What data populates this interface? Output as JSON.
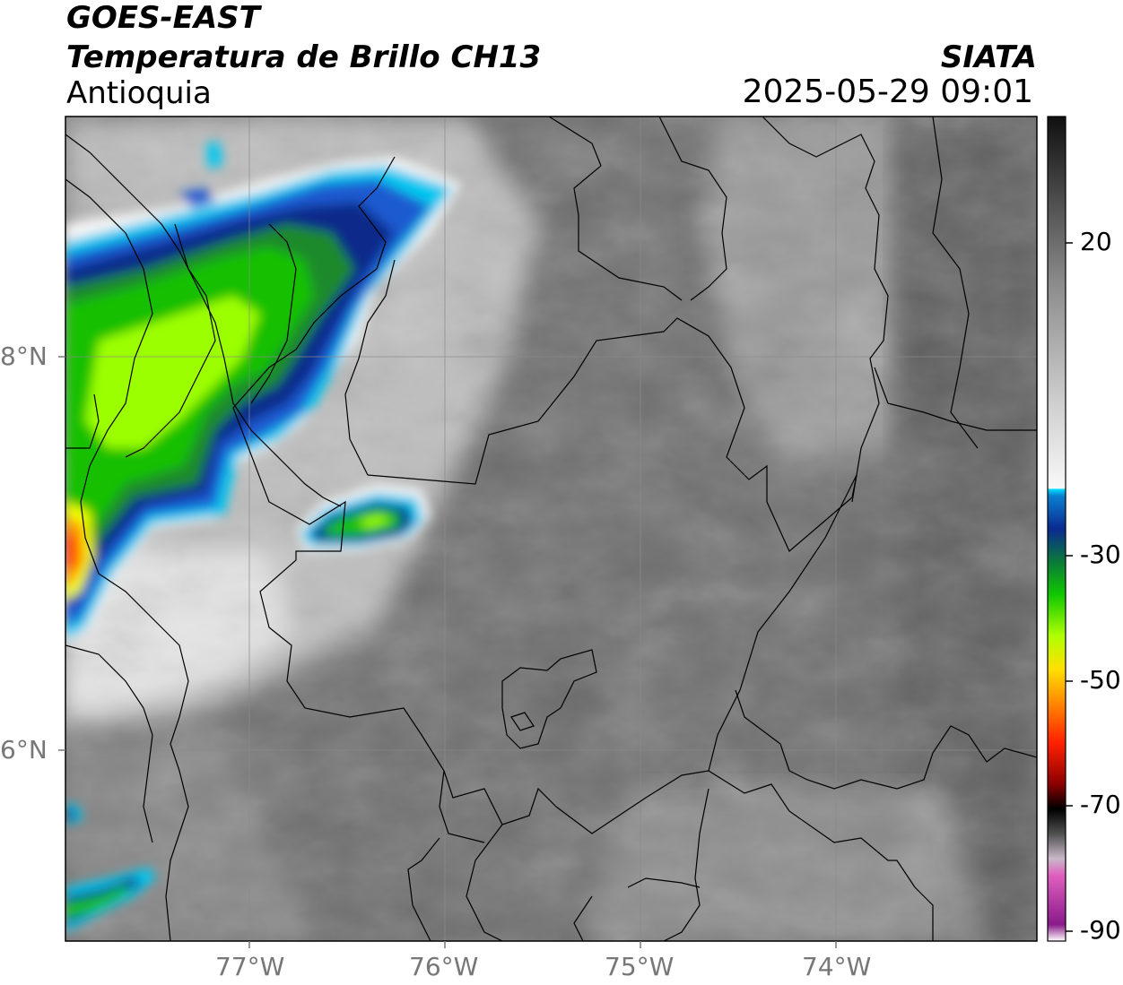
{
  "header": {
    "satellite": "GOES-EAST",
    "product": "Temperatura de Brillo CH13",
    "region": "Antioquia",
    "agency": "SIATA",
    "datetime": "2025-05-29 09:01"
  },
  "map": {
    "lon_ticks": [
      "77°W",
      "76°W",
      "75°W",
      "74°W"
    ],
    "lat_ticks": [
      "8°N",
      "6°N"
    ],
    "cloud_colors": {
      "coldest": "#ff2a00",
      "orange": "#ff9a00",
      "yellow": "#f0ff00",
      "lime": "#9cff00",
      "green": "#13c000",
      "darkgreen": "#1a8a2a",
      "darkblue": "#0a2a8a",
      "blue": "#1a5ad0",
      "cyan": "#00c8f0",
      "white": "#f6f6f6",
      "background": "#6e6e6e"
    }
  },
  "colorbar": {
    "ticks": [
      "20",
      "-30",
      "-50",
      "-70",
      "-90"
    ],
    "tick_values": [
      20,
      -30,
      -50,
      -70,
      -90
    ],
    "range": [
      -90,
      40
    ]
  }
}
